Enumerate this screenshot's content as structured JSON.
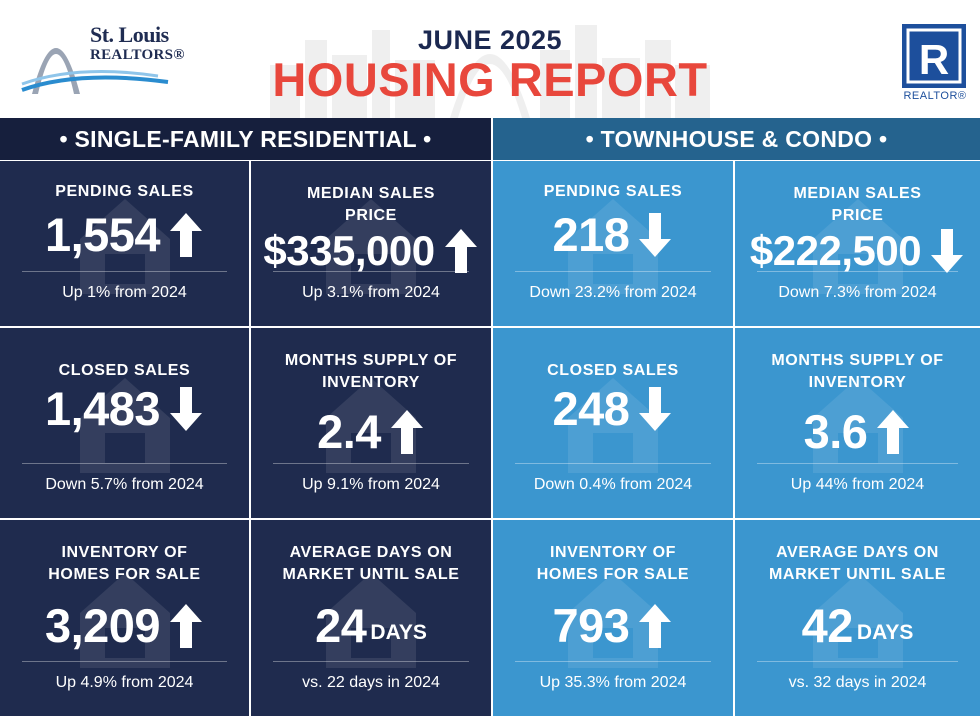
{
  "header": {
    "logo_line1": "St. Louis",
    "logo_line2": "REALTORS®",
    "month": "JUNE 2025",
    "title": "HOUSING REPORT",
    "realtor_mark": "REALTOR®",
    "realtor_letter": "R"
  },
  "colors": {
    "navy": "#1f2b4e",
    "navy_header": "#161f3d",
    "blue": "#3b96cf",
    "blue_header": "#25638e",
    "red_title": "#e8473c"
  },
  "sections": [
    {
      "name": "• SINGLE-FAMILY RESIDENTIAL •",
      "metrics": [
        {
          "label": "PENDING SALES",
          "value": "1,554",
          "unit": "",
          "direction": "up",
          "change": "Up 1% from 2024",
          "icon": "house-icon"
        },
        {
          "label": "MEDIAN SALES PRICE",
          "value": "$335,000",
          "unit": "",
          "direction": "up",
          "change": "Up 3.1% from 2024",
          "icon": "price-tag-icon"
        },
        {
          "label": "CLOSED SALES",
          "value": "1,483",
          "unit": "",
          "direction": "down",
          "change": "Down 5.7% from 2024",
          "icon": "sold-sign-icon"
        },
        {
          "label": "MONTHS SUPPLY OF INVENTORY",
          "value": "2.4",
          "unit": "",
          "direction": "up",
          "change": "Up 9.1% from 2024",
          "icon": "houses-icon"
        },
        {
          "label": "INVENTORY OF HOMES FOR SALE",
          "value": "3,209",
          "unit": "",
          "direction": "up",
          "change": "Up 4.9% from 2024",
          "icon": "for-sale-sign-icon"
        },
        {
          "label": "AVERAGE DAYS ON MARKET UNTIL SALE",
          "value": "24",
          "unit": "DAYS",
          "direction": "none",
          "change": "vs. 22 days in 2024",
          "icon": "calendar-icon"
        }
      ]
    },
    {
      "name": "• TOWNHOUSE & CONDO •",
      "metrics": [
        {
          "label": "PENDING SALES",
          "value": "218",
          "unit": "",
          "direction": "down",
          "change": "Down 23.2% from 2024",
          "icon": "building-icon"
        },
        {
          "label": "MEDIAN SALES PRICE",
          "value": "$222,500",
          "unit": "",
          "direction": "down",
          "change": "Down 7.3% from 2024",
          "icon": "price-tag-icon"
        },
        {
          "label": "CLOSED SALES",
          "value": "248",
          "unit": "",
          "direction": "down",
          "change": "Down 0.4% from 2024",
          "icon": "sold-sign-icon"
        },
        {
          "label": "MONTHS SUPPLY OF INVENTORY",
          "value": "3.6",
          "unit": "",
          "direction": "up",
          "change": "Up 44% from 2024",
          "icon": "houses-icon"
        },
        {
          "label": "INVENTORY OF HOMES FOR SALE",
          "value": "793",
          "unit": "",
          "direction": "up",
          "change": "Up 35.3% from 2024",
          "icon": "for-sale-sign-icon"
        },
        {
          "label": "AVERAGE DAYS ON MARKET UNTIL SALE",
          "value": "42",
          "unit": "DAYS",
          "direction": "none",
          "change": "vs. 32 days in 2024",
          "icon": "calendar-icon"
        }
      ]
    }
  ]
}
